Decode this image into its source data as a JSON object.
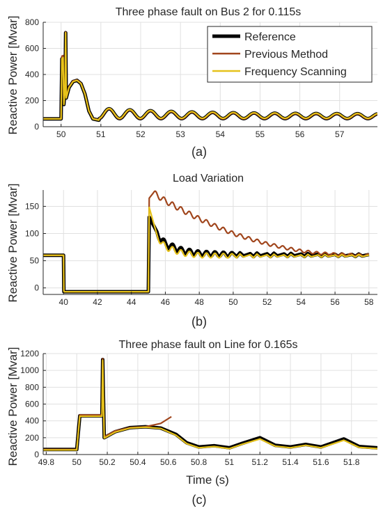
{
  "colors": {
    "reference": "#000000",
    "previous": "#a0451c",
    "frequency": "#e6c21a",
    "fault_spike": "#d9534f",
    "grid": "#e0e0e0",
    "axis": "#262626"
  },
  "legend": {
    "reference": "Reference",
    "previous": "Previous Method",
    "frequency": "Frequency Scanning"
  },
  "chart_data": [
    {
      "type": "line",
      "panel_label": "(a)",
      "title": "Three phase fault on Bus 2 for 0.115s",
      "xlabel": "",
      "ylabel": "Reactive Power [Mvar]",
      "xlim": [
        49.55,
        57.95
      ],
      "ylim": [
        0,
        800
      ],
      "xticks": [
        50,
        51,
        52,
        53,
        54,
        55,
        56,
        57
      ],
      "yticks": [
        0,
        200,
        400,
        600,
        800
      ],
      "grid": true,
      "legend_position": "top-right",
      "series": [
        {
          "name": "Reference",
          "color_key": "reference",
          "points": [
            [
              49.55,
              60
            ],
            [
              50.0,
              60
            ],
            [
              50.02,
              520
            ],
            [
              50.05,
              530
            ],
            [
              50.07,
              170
            ],
            [
              50.1,
              280
            ],
            [
              50.115,
              720
            ],
            [
              50.13,
              220
            ],
            [
              50.2,
              300
            ],
            [
              50.3,
              345
            ],
            [
              50.4,
              355
            ],
            [
              50.5,
              330
            ],
            [
              50.6,
              250
            ],
            [
              50.7,
              120
            ],
            [
              50.8,
              60
            ],
            [
              50.95,
              50
            ]
          ]
        },
        {
          "name": "Previous Method",
          "color_key": "previous",
          "points": [
            [
              49.55,
              60
            ],
            [
              50.0,
              60
            ],
            [
              50.02,
              540
            ],
            [
              50.05,
              545
            ],
            [
              50.07,
              175
            ],
            [
              50.1,
              285
            ],
            [
              50.115,
              725
            ],
            [
              50.13,
              225
            ],
            [
              50.2,
              305
            ],
            [
              50.3,
              350
            ],
            [
              50.4,
              358
            ],
            [
              50.5,
              332
            ],
            [
              50.6,
              252
            ],
            [
              50.7,
              122
            ],
            [
              50.8,
              62
            ],
            [
              50.95,
              52
            ]
          ]
        },
        {
          "name": "Frequency Scanning",
          "color_key": "frequency",
          "points": [
            [
              49.55,
              60
            ],
            [
              50.0,
              60
            ],
            [
              50.02,
              520
            ],
            [
              50.05,
              530
            ],
            [
              50.07,
              170
            ],
            [
              50.1,
              280
            ],
            [
              50.115,
              720
            ],
            [
              50.13,
              220
            ],
            [
              50.2,
              300
            ],
            [
              50.3,
              345
            ],
            [
              50.4,
              355
            ],
            [
              50.5,
              330
            ],
            [
              50.6,
              250
            ],
            [
              50.7,
              120
            ],
            [
              50.8,
              60
            ],
            [
              50.95,
              50
            ]
          ]
        }
      ],
      "oscillation": {
        "start": 50.95,
        "end": 57.95,
        "period": 0.52,
        "base": 70,
        "amp_start": 80,
        "amp_end": 35,
        "decay": 0.45
      }
    },
    {
      "type": "line",
      "panel_label": "(b)",
      "title": "Load Variation",
      "xlabel": "",
      "ylabel": "Reactive Power [Mvar]",
      "xlim": [
        38.8,
        58.5
      ],
      "ylim": [
        -12,
        180
      ],
      "xticks": [
        40,
        42,
        44,
        46,
        48,
        50,
        52,
        54,
        56,
        58
      ],
      "yticks": [
        0,
        50,
        100,
        150
      ],
      "grid": true,
      "series": [
        {
          "name": "Reference",
          "color_key": "reference",
          "points": [
            [
              38.8,
              60
            ],
            [
              40.0,
              60
            ],
            [
              40.02,
              -7
            ],
            [
              45.0,
              -7
            ],
            [
              45.05,
              130
            ],
            [
              45.5,
              100
            ],
            [
              46,
              80
            ],
            [
              47,
              68
            ],
            [
              48,
              63
            ],
            [
              50,
              61
            ],
            [
              58,
              60
            ]
          ]
        },
        {
          "name": "Previous Method",
          "color_key": "previous",
          "points": [
            [
              38.8,
              60
            ],
            [
              40.0,
              60
            ],
            [
              40.02,
              -7
            ],
            [
              45.0,
              -7
            ],
            [
              45.05,
              165
            ],
            [
              45.3,
              175
            ],
            [
              46,
              160
            ],
            [
              47,
              143
            ],
            [
              48,
              127
            ],
            [
              49,
              113
            ],
            [
              50,
              100
            ],
            [
              51,
              90
            ],
            [
              52,
              81
            ],
            [
              53,
              74
            ],
            [
              54,
              68
            ],
            [
              55,
              64
            ],
            [
              56,
              62
            ],
            [
              57,
              61
            ],
            [
              58,
              60
            ]
          ]
        },
        {
          "name": "Frequency Scanning",
          "color_key": "frequency",
          "points": [
            [
              38.8,
              60
            ],
            [
              40.0,
              60
            ],
            [
              40.02,
              -7
            ],
            [
              45.0,
              -7
            ],
            [
              45.05,
              148
            ],
            [
              45.5,
              95
            ],
            [
              46,
              75
            ],
            [
              47,
              64
            ],
            [
              48,
              60
            ],
            [
              50,
              59
            ],
            [
              58,
              59
            ]
          ]
        }
      ],
      "ripple": {
        "start": 45.3,
        "end": 58.0,
        "period": 0.5,
        "amp": 6
      }
    },
    {
      "type": "line",
      "panel_label": "(c)",
      "title": "Three phase fault on Line for 0.165s",
      "xlabel": "Time (s)",
      "ylabel": "Reactive Power [Mvar]",
      "xlim": [
        49.78,
        51.97
      ],
      "ylim": [
        0,
        1200
      ],
      "xticks": [
        49.8,
        50,
        50.2,
        50.4,
        50.6,
        50.8,
        51,
        51.2,
        51.4,
        51.6,
        51.8
      ],
      "xtick_labels": [
        "49.8",
        "50",
        "50.2",
        "50.4",
        "50.6",
        "50.8",
        "51",
        "51.2",
        "51.4",
        "51.6",
        "51.8"
      ],
      "yticks": [
        0,
        200,
        400,
        600,
        800,
        1000,
        1200
      ],
      "grid": true,
      "series": [
        {
          "name": "Reference",
          "color_key": "reference",
          "points": [
            [
              49.78,
              60
            ],
            [
              50.0,
              60
            ],
            [
              50.02,
              460
            ],
            [
              50.165,
              460
            ],
            [
              50.17,
              1130
            ],
            [
              50.18,
              200
            ],
            [
              50.25,
              270
            ],
            [
              50.35,
              320
            ],
            [
              50.45,
              330
            ],
            [
              50.55,
              315
            ],
            [
              50.65,
              240
            ],
            [
              50.72,
              140
            ],
            [
              50.8,
              90
            ],
            [
              50.9,
              105
            ],
            [
              51.0,
              80
            ],
            [
              51.08,
              130
            ],
            [
              51.2,
              200
            ],
            [
              51.3,
              110
            ],
            [
              51.4,
              90
            ],
            [
              51.5,
              120
            ],
            [
              51.6,
              90
            ],
            [
              51.75,
              185
            ],
            [
              51.85,
              95
            ],
            [
              51.97,
              80
            ]
          ]
        },
        {
          "name": "Previous Method",
          "color_key": "previous",
          "points": [
            [
              49.78,
              60
            ],
            [
              50.0,
              60
            ],
            [
              50.02,
              470
            ],
            [
              50.165,
              470
            ],
            [
              50.17,
              1140
            ],
            [
              50.18,
              210
            ],
            [
              50.25,
              280
            ],
            [
              50.35,
              320
            ],
            [
              50.45,
              330
            ],
            [
              50.55,
              370
            ],
            [
              50.62,
              450
            ]
          ]
        },
        {
          "name": "Frequency Scanning",
          "color_key": "frequency",
          "points": [
            [
              49.78,
              55
            ],
            [
              50.0,
              55
            ],
            [
              50.02,
              455
            ],
            [
              50.165,
              455
            ],
            [
              50.17,
              1120
            ],
            [
              50.18,
              195
            ],
            [
              50.25,
              265
            ],
            [
              50.35,
              315
            ],
            [
              50.45,
              325
            ],
            [
              50.55,
              310
            ],
            [
              50.65,
              230
            ],
            [
              50.72,
              130
            ],
            [
              50.8,
              80
            ],
            [
              50.9,
              95
            ],
            [
              51.0,
              70
            ],
            [
              51.08,
              120
            ],
            [
              51.2,
              185
            ],
            [
              51.3,
              100
            ],
            [
              51.4,
              80
            ],
            [
              51.5,
              110
            ],
            [
              51.6,
              80
            ],
            [
              51.75,
              170
            ],
            [
              51.85,
              85
            ],
            [
              51.97,
              70
            ]
          ]
        }
      ]
    }
  ]
}
